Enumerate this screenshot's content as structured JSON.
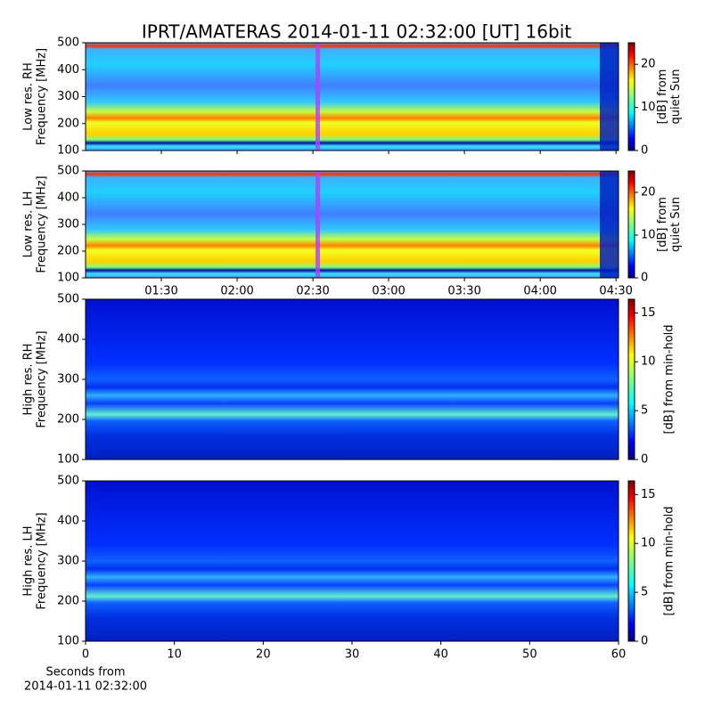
{
  "chart_data": [
    {
      "type": "heatmap",
      "title": "IPRT/AMATERAS 2014-01-11 02:32:00 [UT]   16bit",
      "ylabel": [
        "Low res. RH",
        "Frequency [MHz]"
      ],
      "ylim": [
        100,
        500
      ],
      "yticks": [
        100,
        200,
        300,
        400,
        500
      ],
      "colorbar": {
        "label": [
          "[dB] from",
          "quiet Sun"
        ],
        "lim": [
          0,
          25
        ],
        "ticks": [
          0,
          10,
          20
        ]
      }
    },
    {
      "type": "heatmap",
      "ylabel": [
        "Low res. LH",
        "Frequency [MHz]"
      ],
      "ylim": [
        100,
        500
      ],
      "yticks": [
        100,
        200,
        300,
        400,
        500
      ],
      "xlim": [
        60,
        271
      ],
      "xticks": [
        {
          "value": 90,
          "label": "01:30"
        },
        {
          "value": 120,
          "label": "02:00"
        },
        {
          "value": 150,
          "label": "02:30"
        },
        {
          "value": 180,
          "label": "03:00"
        },
        {
          "value": 210,
          "label": "03:30"
        },
        {
          "value": 240,
          "label": "04:00"
        },
        {
          "value": 270,
          "label": "04:30"
        }
      ],
      "colorbar": {
        "label": [
          "[dB] from",
          "quiet Sun"
        ],
        "lim": [
          0,
          25
        ],
        "ticks": [
          0,
          10,
          20
        ]
      }
    },
    {
      "type": "heatmap",
      "ylabel": [
        "High res. RH",
        "Frequency [MHz]"
      ],
      "ylim": [
        100,
        500
      ],
      "yticks": [
        100,
        200,
        300,
        400,
        500
      ],
      "colorbar": {
        "label": [
          "[dB] from min-hold"
        ],
        "lim": [
          0,
          16.4
        ],
        "ticks": [
          0,
          5,
          10,
          15
        ]
      }
    },
    {
      "type": "heatmap",
      "ylabel": [
        "High res. LH",
        "Frequency [MHz]"
      ],
      "ylim": [
        100,
        500
      ],
      "yticks": [
        100,
        200,
        300,
        400,
        500
      ],
      "xlabel": [
        "Seconds from",
        "2014-01-11 02:32:00"
      ],
      "xlim": [
        0,
        60
      ],
      "xticks": [
        0,
        10,
        20,
        30,
        40,
        50,
        60
      ],
      "colorbar": {
        "label": [
          "[dB] from min-hold"
        ],
        "lim": [
          0,
          16.4
        ],
        "ticks": [
          0,
          5,
          10,
          15
        ]
      }
    }
  ]
}
